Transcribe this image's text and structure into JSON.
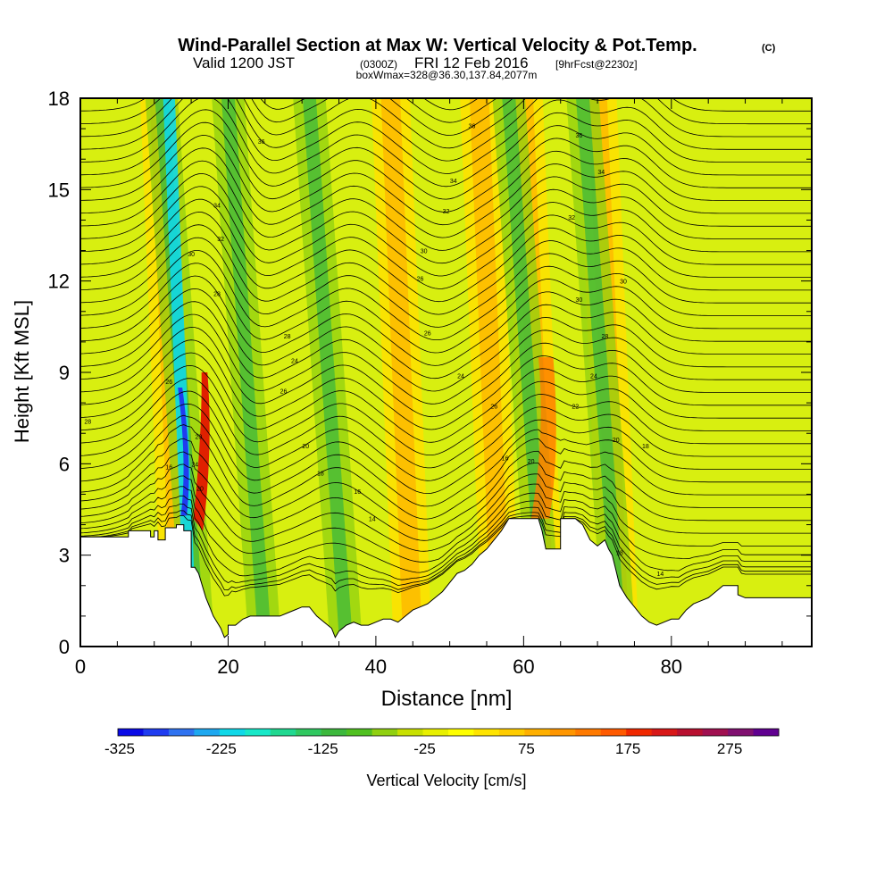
{
  "header": {
    "title": "Wind-Parallel Section at Max W: Vertical Velocity & Pot.Temp.",
    "title_mark": "(C)",
    "valid_prefix": "Valid 1200 JST",
    "valid_utc": "(0300Z)",
    "valid_date": "FRI 12 Feb 2016",
    "fcst": "[9hrFcst@2230z]",
    "box_info": "boxWmax=328@36.30,137.84,2077m"
  },
  "chart_data": {
    "type": "heatmap",
    "xlabel": "Distance [nm]",
    "ylabel": "Height [Kft MSL]",
    "xlim": [
      0,
      99
    ],
    "ylim": [
      0,
      18
    ],
    "x_ticks": [
      0,
      20,
      40,
      60,
      80
    ],
    "y_ticks": [
      0,
      3,
      6,
      9,
      12,
      15,
      18
    ],
    "colorbar": {
      "label": "Vertical Velocity [cm/s]",
      "tick_labels": [
        "-325",
        "-225",
        "-125",
        "-25",
        "75",
        "175",
        "275"
      ],
      "tick_values": [
        -325,
        -225,
        -125,
        -25,
        75,
        175,
        275
      ],
      "range": [
        -325,
        325
      ],
      "colors": [
        "#0a0ae6",
        "#1f3cf0",
        "#2f72f0",
        "#1ea8f0",
        "#10d8e8",
        "#18e8c8",
        "#20d890",
        "#30c860",
        "#3cb83c",
        "#50c020",
        "#90d010",
        "#c8e000",
        "#e8f000",
        "#ffff00",
        "#ffe400",
        "#ffcc00",
        "#ffb000",
        "#ff9600",
        "#ff7a00",
        "#ff5a00",
        "#f02800",
        "#d81818",
        "#b81030",
        "#a01050",
        "#801070",
        "#600090"
      ]
    },
    "terrain_kft": [
      [
        0,
        3.6
      ],
      [
        6.5,
        3.6
      ],
      [
        6.5,
        3.8
      ],
      [
        9.5,
        3.8
      ],
      [
        9.5,
        3.6
      ],
      [
        10,
        3.6
      ],
      [
        10,
        3.8
      ],
      [
        10.5,
        3.8
      ],
      [
        10.5,
        3.5
      ],
      [
        11.5,
        3.5
      ],
      [
        11.5,
        3.9
      ],
      [
        13,
        3.9
      ],
      [
        13,
        4.0
      ],
      [
        14,
        4.0
      ],
      [
        14,
        3.8
      ],
      [
        15,
        3.8
      ],
      [
        15,
        2.6
      ],
      [
        15.5,
        2.6
      ],
      [
        16,
        2.4
      ],
      [
        17,
        1.6
      ],
      [
        17.5,
        1.3
      ],
      [
        18,
        1.0
      ],
      [
        19,
        0.6
      ],
      [
        19.5,
        0.3
      ],
      [
        20,
        0.4
      ],
      [
        20,
        0.7
      ],
      [
        21,
        0.7
      ],
      [
        22,
        0.9
      ],
      [
        23,
        1.0
      ],
      [
        24,
        1.0
      ],
      [
        25,
        1.0
      ],
      [
        26,
        1.0
      ],
      [
        27,
        1.0
      ],
      [
        28,
        1.1
      ],
      [
        29,
        1.2
      ],
      [
        30,
        1.3
      ],
      [
        31,
        1.3
      ],
      [
        32,
        1.0
      ],
      [
        33,
        0.8
      ],
      [
        34,
        0.6
      ],
      [
        34.5,
        0.3
      ],
      [
        35,
        0.5
      ],
      [
        36,
        0.7
      ],
      [
        37,
        0.8
      ],
      [
        38,
        0.7
      ],
      [
        39,
        0.7
      ],
      [
        40,
        0.8
      ],
      [
        41,
        0.9
      ],
      [
        42,
        0.9
      ],
      [
        43,
        0.8
      ],
      [
        44,
        1.0
      ],
      [
        45,
        1.2
      ],
      [
        46,
        1.3
      ],
      [
        47,
        1.4
      ],
      [
        48,
        1.6
      ],
      [
        49,
        1.8
      ],
      [
        50,
        2.1
      ],
      [
        51,
        2.4
      ],
      [
        52,
        2.5
      ],
      [
        53,
        2.7
      ],
      [
        54,
        3.0
      ],
      [
        55,
        3.2
      ],
      [
        56,
        3.5
      ],
      [
        57,
        3.8
      ],
      [
        58,
        4.2
      ],
      [
        60,
        4.2
      ],
      [
        62,
        4.2
      ],
      [
        62.5,
        3.8
      ],
      [
        63,
        3.2
      ],
      [
        65,
        3.2
      ],
      [
        65,
        4.2
      ],
      [
        67,
        4.2
      ],
      [
        68,
        4.0
      ],
      [
        69,
        3.5
      ],
      [
        70,
        3.3
      ],
      [
        71,
        3.5
      ],
      [
        71.5,
        3.2
      ],
      [
        72,
        3.0
      ],
      [
        72.5,
        2.5
      ],
      [
        73,
        2.0
      ],
      [
        74,
        1.6
      ],
      [
        75,
        1.3
      ],
      [
        76,
        1.0
      ],
      [
        77,
        0.8
      ],
      [
        78,
        0.7
      ],
      [
        79,
        0.8
      ],
      [
        80,
        0.9
      ],
      [
        81,
        0.9
      ],
      [
        82,
        1.2
      ],
      [
        83,
        1.4
      ],
      [
        84,
        1.5
      ],
      [
        85,
        1.6
      ],
      [
        86,
        1.8
      ],
      [
        87,
        2.0
      ],
      [
        88,
        2.0
      ],
      [
        89,
        2.0
      ],
      [
        89,
        1.7
      ],
      [
        90,
        1.6
      ],
      [
        92,
        1.6
      ],
      [
        93,
        1.6
      ],
      [
        94,
        1.6
      ],
      [
        95,
        1.6
      ],
      [
        96,
        1.6
      ],
      [
        99,
        1.6
      ]
    ],
    "updraft_cores_x_nm": [
      15.7,
      47,
      59,
      65,
      75
    ],
    "downdraft_cores_x_nm": [
      15,
      24,
      35,
      62,
      72
    ],
    "theta_labels": [
      {
        "x": 1,
        "y": 7.4,
        "text": "28"
      },
      {
        "x": 12,
        "y": 8.7,
        "text": "26"
      },
      {
        "x": 12,
        "y": 5.9,
        "text": "16"
      },
      {
        "x": 16,
        "y": 6.9,
        "text": "20"
      },
      {
        "x": 15.5,
        "y": 6.0,
        "text": "24"
      },
      {
        "x": 16.2,
        "y": 5.2,
        "text": "20"
      },
      {
        "x": 24.5,
        "y": 16.6,
        "text": "36"
      },
      {
        "x": 18.5,
        "y": 14.5,
        "text": "34"
      },
      {
        "x": 19,
        "y": 13.4,
        "text": "32"
      },
      {
        "x": 15,
        "y": 12.9,
        "text": "30"
      },
      {
        "x": 18.5,
        "y": 11.6,
        "text": "28"
      },
      {
        "x": 28,
        "y": 10.2,
        "text": "28"
      },
      {
        "x": 29,
        "y": 9.4,
        "text": "24"
      },
      {
        "x": 27.5,
        "y": 8.4,
        "text": "26"
      },
      {
        "x": 30.5,
        "y": 6.6,
        "text": "20"
      },
      {
        "x": 32.5,
        "y": 5.7,
        "text": "18"
      },
      {
        "x": 37.5,
        "y": 5.1,
        "text": "16"
      },
      {
        "x": 39.5,
        "y": 4.2,
        "text": "14"
      },
      {
        "x": 53,
        "y": 17.1,
        "text": "36"
      },
      {
        "x": 50.5,
        "y": 15.3,
        "text": "34"
      },
      {
        "x": 49.5,
        "y": 14.3,
        "text": "32"
      },
      {
        "x": 46.5,
        "y": 13.0,
        "text": "30"
      },
      {
        "x": 46,
        "y": 12.1,
        "text": "26"
      },
      {
        "x": 47,
        "y": 10.3,
        "text": "26"
      },
      {
        "x": 51.5,
        "y": 8.9,
        "text": "24"
      },
      {
        "x": 56,
        "y": 7.9,
        "text": "26"
      },
      {
        "x": 57.5,
        "y": 6.2,
        "text": "16"
      },
      {
        "x": 61,
        "y": 6.1,
        "text": "20"
      },
      {
        "x": 67.5,
        "y": 16.8,
        "text": "36"
      },
      {
        "x": 70.5,
        "y": 15.6,
        "text": "34"
      },
      {
        "x": 66.5,
        "y": 14.1,
        "text": "32"
      },
      {
        "x": 73.5,
        "y": 12.0,
        "text": "30"
      },
      {
        "x": 67.5,
        "y": 11.4,
        "text": "30"
      },
      {
        "x": 71,
        "y": 10.2,
        "text": "28"
      },
      {
        "x": 69.5,
        "y": 8.9,
        "text": "24"
      },
      {
        "x": 67,
        "y": 7.9,
        "text": "22"
      },
      {
        "x": 72.5,
        "y": 6.8,
        "text": "20"
      },
      {
        "x": 76.5,
        "y": 6.6,
        "text": "18"
      },
      {
        "x": 73,
        "y": 3.1,
        "text": "18"
      },
      {
        "x": 78.5,
        "y": 2.4,
        "text": "14"
      }
    ]
  }
}
